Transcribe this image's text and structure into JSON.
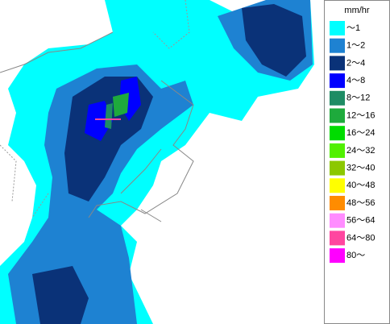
{
  "legend": {
    "title": "mm/hr",
    "items": [
      {
        "label": "～1",
        "color": "#00ffff"
      },
      {
        "label": "1～2",
        "color": "#1e82d2"
      },
      {
        "label": "2～4",
        "color": "#0a3278"
      },
      {
        "label": "4～8",
        "color": "#0000ff"
      },
      {
        "label": "8～12",
        "color": "#1e8c64"
      },
      {
        "label": "12～16",
        "color": "#1eaa3c"
      },
      {
        "label": "16～24",
        "color": "#00dc00"
      },
      {
        "label": "24～32",
        "color": "#50f000"
      },
      {
        "label": "32～40",
        "color": "#8cc800"
      },
      {
        "label": "40～48",
        "color": "#ffff00"
      },
      {
        "label": "48～56",
        "color": "#ff8c00"
      },
      {
        "label": "56～64",
        "color": "#ff8cff"
      },
      {
        "label": "64～80",
        "color": "#ff46a0"
      },
      {
        "label": "80～",
        "color": "#ff00ff"
      }
    ]
  }
}
